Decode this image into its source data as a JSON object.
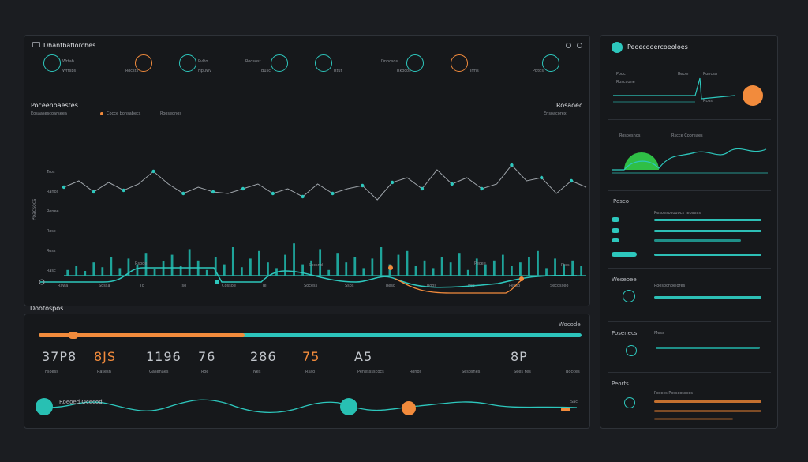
{
  "colors": {
    "accent": "#2dc7bd",
    "orange": "#f28b3c",
    "green": "#3ec94a",
    "panel": "#16181b"
  },
  "header": {
    "title": "Dhantbatlorches",
    "window_icon": "window-icon",
    "top_icons": [
      "settings-icon",
      "close-icon"
    ],
    "tiles": [
      {
        "label": "Wrtab",
        "sub": "Wrtsbs",
        "icon": "gauge-icon"
      },
      {
        "label": "",
        "sub": "Rocsts",
        "icon": "dial-icon"
      },
      {
        "label": "Pvlto",
        "sub": "Hpuwv",
        "icon": "signal-icon"
      },
      {
        "label": "Roosost",
        "sub": "Busc",
        "icon": "dial-icon"
      },
      {
        "label": "",
        "sub": "Rtut",
        "icon": "compass-icon"
      },
      {
        "label": "Dnocsos",
        "sub": "Rkocos",
        "icon": "activity-icon"
      },
      {
        "label": "",
        "sub": "Trms",
        "icon": "tool-icon"
      },
      {
        "label": "",
        "sub": "Pbtds",
        "icon": "bolt-icon"
      }
    ]
  },
  "chart_header": {
    "title": "Poceenoaestes",
    "subtitle": "Eosaasescoarseea",
    "legend": "Cocce bonsabecs",
    "legend2": "Rooseonos",
    "right_title": "Rosaoec",
    "right_sub": "Ensoacorex"
  },
  "chart_data": {
    "type": "line",
    "ylabel": "Poacsocs",
    "ytick_labels": [
      "Tsos",
      "Ranos",
      "Ronee",
      "Rosc",
      "Ross",
      "Rasc"
    ],
    "xtick_labels": [
      "Rswa",
      "Sossa",
      "Tb",
      "Iso",
      "Cossoe",
      "Ie",
      "Socess",
      "Ssos",
      "Reso",
      "Roos",
      "Pec",
      "Pesso",
      "Secosseo"
    ],
    "series": [
      {
        "values": [
          56,
          60,
          53,
          59,
          54,
          58,
          66,
          58,
          52,
          56,
          53,
          52,
          55,
          58,
          52,
          55,
          50,
          58,
          52,
          55,
          57,
          48,
          59,
          62,
          55,
          67,
          58,
          62,
          55,
          58,
          70,
          60,
          62,
          52,
          60,
          56
        ]
      },
      {
        "values": [
          6,
          10,
          5,
          14,
          9,
          20,
          8,
          18,
          12,
          24,
          7,
          15,
          22,
          10,
          28,
          16,
          6,
          20,
          12,
          30,
          9,
          18,
          26,
          14,
          8,
          22,
          34,
          12,
          16,
          28,
          6,
          24,
          14,
          20,
          8,
          18,
          30,
          12,
          22,
          26,
          10,
          16,
          8,
          20,
          14,
          24,
          6,
          18,
          12,
          16,
          22,
          10,
          14,
          20,
          26,
          8,
          18,
          12,
          16,
          10
        ]
      }
    ]
  },
  "lower_chart": {
    "labels": [
      "Rsooe",
      "Socsnd",
      "Pecee",
      "Ptes"
    ]
  },
  "bottom": {
    "title": "Dootospos",
    "right_label": "Wocode",
    "progress": 0.38,
    "stats": [
      {
        "value": "37P8",
        "label": "Fsoess",
        "color": "#c2c6cc"
      },
      {
        "value": "8JS",
        "label": "Rasesn",
        "color": "#f28b3c"
      },
      {
        "value": "1196",
        "label": "Gasenaes",
        "color": "#c2c6cc"
      },
      {
        "value": "76",
        "label": "Roe",
        "color": "#c2c6cc"
      },
      {
        "value": "286",
        "label": "Nes",
        "color": "#c2c6cc"
      },
      {
        "value": "75",
        "label": "Rsao",
        "color": "#f28b3c"
      },
      {
        "value": "A5",
        "label": "Penesssscocs",
        "color": "#c2c6cc"
      },
      {
        "value": "",
        "label": "Ronos",
        "color": "#c2c6cc"
      },
      {
        "value": "",
        "label": "Sesosnes",
        "color": "#c2c6cc"
      },
      {
        "value": "8P",
        "label": "Sees Fes",
        "color": "#c2c6cc"
      },
      {
        "value": "",
        "label": "Bocces",
        "color": "#c2c6cc"
      }
    ],
    "wave_label": "Roeoed Ocecod",
    "wave_right": "Sac"
  },
  "side": {
    "title": "Peoecooercoeoloes",
    "mini_labels": [
      "Pooc",
      "Rosccone",
      "Recer",
      "Roncsa",
      "Rcos"
    ],
    "gauge_title": "Rscce Cooreaes",
    "gauge_label": "Rosoesnos",
    "section2": "Posco",
    "section2_sub": "Resoesosouocs teoseas",
    "section3": "Weseoee",
    "section3_sub": "Roesocnoelores",
    "section4": "Posenecs",
    "section4_sub": "Mess",
    "section5": "Peorts",
    "section5_sub": "Pocccs Posscosoccs"
  }
}
